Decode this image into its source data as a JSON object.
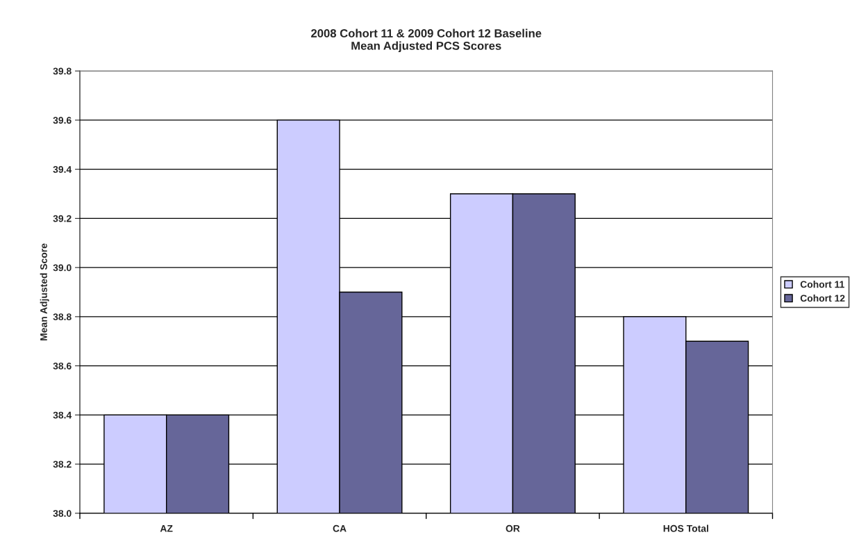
{
  "chart_data": {
    "type": "bar",
    "title": "2008 Cohort 11 & 2009 Cohort 12 Baseline\nMean Adjusted PCS Scores",
    "ylabel": "Mean Adjusted Score",
    "categories": [
      "AZ",
      "CA",
      "OR",
      "HOS Total"
    ],
    "series": [
      {
        "name": "Cohort 11",
        "color": "#ccccff",
        "values": [
          38.4,
          39.6,
          39.3,
          38.8
        ]
      },
      {
        "name": "Cohort 12",
        "color": "#666699",
        "values": [
          38.4,
          38.9,
          39.3,
          38.7
        ]
      }
    ],
    "ylim": [
      38.0,
      39.8
    ],
    "yticks": [
      {
        "value": 38,
        "label": "38.0"
      },
      38.2,
      38.4,
      38.6,
      38.8,
      {
        "value": 39,
        "label": "39.0"
      },
      39.2,
      39.4,
      39.6,
      39.8
    ],
    "grid": "y",
    "legend": "right"
  }
}
